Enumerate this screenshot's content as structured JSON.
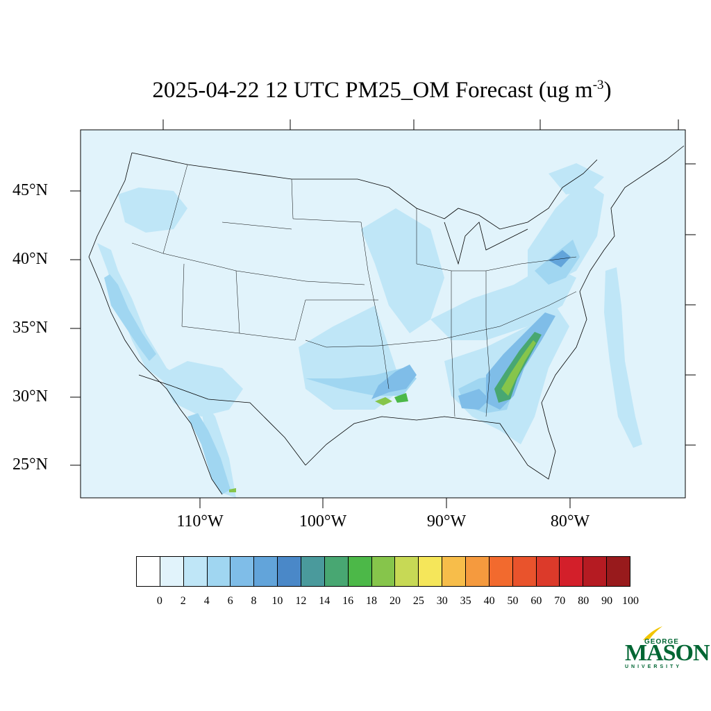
{
  "title_main": "2025-04-22 12 UTC PM25_OM Forecast (ug m",
  "title_exp": "-3",
  "title_close": ")",
  "lat_labels": [
    "45°N",
    "40°N",
    "35°N",
    "30°N",
    "25°N"
  ],
  "lon_labels": [
    "110°W",
    "100°W",
    "90°W",
    "80°W"
  ],
  "legend": {
    "ticks": [
      "0",
      "2",
      "4",
      "6",
      "8",
      "10",
      "12",
      "14",
      "16",
      "18",
      "20",
      "25",
      "30",
      "35",
      "40",
      "50",
      "60",
      "70",
      "80",
      "90",
      "100"
    ],
    "colors": [
      "#ffffff",
      "#e1f3fb",
      "#bfe6f7",
      "#a0d6f1",
      "#7fbde8",
      "#62a4da",
      "#4a88c8",
      "#4a9a9c",
      "#48a772",
      "#4cb848",
      "#86c54b",
      "#c7d955",
      "#f5e65a",
      "#f7bd4a",
      "#f59a3e",
      "#f26a2e",
      "#e9532c",
      "#dc3a2a",
      "#d31f2a",
      "#b51b22",
      "#981a1c"
    ]
  },
  "map": {
    "background": "#e1f3fb",
    "colors": {
      "low": "#bfe6f7",
      "mid": "#a0d6f1",
      "high": "#7fbde8",
      "higher": "#62a4da",
      "teal": "#4a9a9c",
      "green": "#4cb848",
      "lime": "#86c54b",
      "yellowgreen": "#c7d955"
    }
  },
  "logo": {
    "line1": "GEORGE",
    "line2": "MASON",
    "line3": "UNIVERSITY",
    "color": "#006633",
    "accent": "#f2c500"
  }
}
